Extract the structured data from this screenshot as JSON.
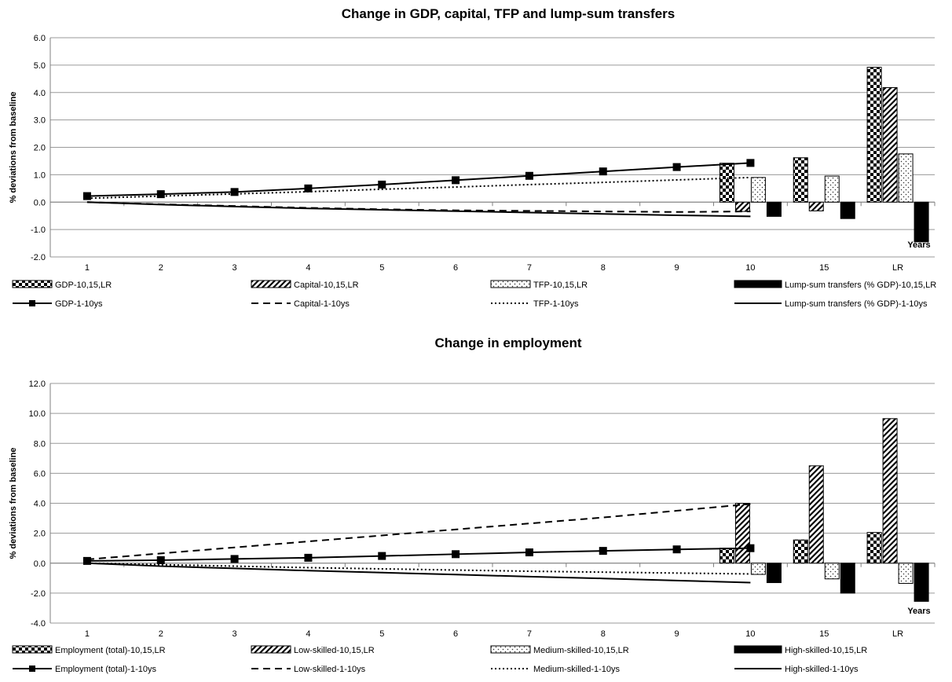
{
  "chart_data": [
    {
      "type": "bar+line",
      "title": "Change in GDP, capital, TFP and lump-sum transfers",
      "ylabel": "% deviations from baseline",
      "xlabel_note": "Years",
      "ylim": [
        -2.0,
        6.0
      ],
      "ytick_step": 1.0,
      "categories": [
        "1",
        "2",
        "3",
        "4",
        "5",
        "6",
        "7",
        "8",
        "9",
        "10",
        "15",
        "LR"
      ],
      "bar_categories": [
        "10",
        "15",
        "LR"
      ],
      "bar_series": [
        {
          "name": "GDP-10,15,LR",
          "pattern": "checker",
          "values": [
            1.42,
            1.62,
            4.92
          ]
        },
        {
          "name": "Capital-10,15,LR",
          "pattern": "diag",
          "values": [
            -0.34,
            -0.32,
            4.18
          ]
        },
        {
          "name": "TFP-10,15,LR",
          "pattern": "dots",
          "values": [
            0.9,
            0.95,
            1.76
          ]
        },
        {
          "name": "Lump-sum transfers (% GDP)-10,15,LR",
          "pattern": "solid",
          "values": [
            -0.52,
            -0.6,
            -1.45
          ]
        }
      ],
      "line_series": [
        {
          "name": "GDP-1-10ys",
          "style": "solid-marker",
          "values": [
            0.22,
            0.29,
            0.37,
            0.5,
            0.64,
            0.8,
            0.96,
            1.12,
            1.28,
            1.43
          ]
        },
        {
          "name": "Capital-1-10ys",
          "style": "dashed",
          "values": [
            0.0,
            -0.08,
            -0.14,
            -0.21,
            -0.26,
            -0.3,
            -0.32,
            -0.34,
            -0.36,
            -0.34
          ]
        },
        {
          "name": "TFP-1-10ys",
          "style": "dotted",
          "values": [
            0.14,
            0.22,
            0.3,
            0.38,
            0.47,
            0.55,
            0.64,
            0.72,
            0.81,
            0.9
          ]
        },
        {
          "name": "Lump-sum transfers (% GDP)-1-10ys",
          "style": "solid",
          "values": [
            0.0,
            -0.09,
            -0.16,
            -0.23,
            -0.28,
            -0.33,
            -0.38,
            -0.43,
            -0.48,
            -0.52
          ]
        }
      ]
    },
    {
      "type": "bar+line",
      "title": "Change in employment",
      "ylabel": "% deviations from baseline",
      "xlabel_note": "Years",
      "ylim": [
        -4.0,
        12.0
      ],
      "ytick_step": 2.0,
      "categories": [
        "1",
        "2",
        "3",
        "4",
        "5",
        "6",
        "7",
        "8",
        "9",
        "10",
        "15",
        "LR"
      ],
      "bar_categories": [
        "10",
        "15",
        "LR"
      ],
      "bar_series": [
        {
          "name": "Employment (total)-10,15,LR",
          "pattern": "checker",
          "values": [
            1.0,
            1.55,
            2.05
          ]
        },
        {
          "name": "Low-skilled-10,15,LR",
          "pattern": "diag",
          "values": [
            4.0,
            6.5,
            9.65
          ]
        },
        {
          "name": "Medium-skilled-10,15,LR",
          "pattern": "dots",
          "values": [
            -0.75,
            -1.05,
            -1.35
          ]
        },
        {
          "name": "High-skilled-10,15,LR",
          "pattern": "solid",
          "values": [
            -1.3,
            -2.0,
            -2.55
          ]
        }
      ],
      "line_series": [
        {
          "name": "Employment (total)-1-10ys",
          "style": "solid-marker",
          "values": [
            0.15,
            0.2,
            0.28,
            0.36,
            0.48,
            0.6,
            0.72,
            0.82,
            0.92,
            1.0
          ]
        },
        {
          "name": "Low-skilled-1-10ys",
          "style": "dashed",
          "values": [
            0.25,
            0.65,
            1.05,
            1.45,
            1.85,
            2.25,
            2.65,
            3.05,
            3.5,
            3.95
          ]
        },
        {
          "name": "Medium-skilled-1-10ys",
          "style": "dotted",
          "values": [
            0.0,
            -0.1,
            -0.2,
            -0.3,
            -0.38,
            -0.46,
            -0.54,
            -0.6,
            -0.66,
            -0.72
          ]
        },
        {
          "name": "High-skilled-1-10ys",
          "style": "solid",
          "values": [
            0.0,
            -0.2,
            -0.35,
            -0.5,
            -0.63,
            -0.76,
            -0.9,
            -1.02,
            -1.16,
            -1.3
          ]
        }
      ]
    }
  ]
}
